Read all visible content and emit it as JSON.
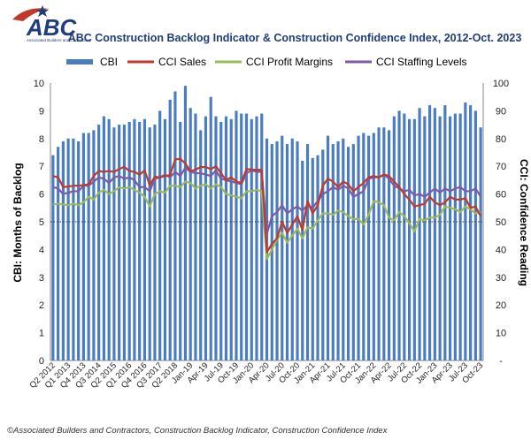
{
  "logo": {
    "letters": "ABC",
    "tagline": "Associated Builders and Contractors"
  },
  "footer": "©Associated Builders and Contractors, Construction Backlog Indicator, Construction Confidence Index",
  "colors": {
    "cbi": "#4a7cc2",
    "sales": "#c0392b",
    "profit": "#9bbb59",
    "staffing": "#7d5aa6",
    "title": "#1f3d7a"
  },
  "chart_data": {
    "type": "bar",
    "title": "ABC Construction Backlog Indicator & Construction Confidence Index, 2012-Oct. 2023",
    "ylabel": "CBI: Months of Backlog",
    "y2label": "CCI: Confidence Reading",
    "ylim": [
      0,
      10
    ],
    "y2lim": [
      0,
      100
    ],
    "yticks": [
      "0",
      "1",
      "2",
      "3",
      "4",
      "5",
      "6",
      "7",
      "8",
      "9",
      "10"
    ],
    "y2ticks": [
      "-",
      "10",
      "20",
      "30",
      "40",
      "50",
      "60",
      "70",
      "80",
      "90",
      "100"
    ],
    "reference_line_y2": 50,
    "grid": false,
    "legend_position": "top",
    "xticks": [
      "Q2 2012",
      "Q1 2013",
      "Q4 2013",
      "Q3 2014",
      "Q2 2015",
      "Q1 2016",
      "Q4 2016",
      "Q3 2017",
      "Q2 2018",
      "Jan-19",
      "Apr-19",
      "Jul-19",
      "Oct-19",
      "Jan-20",
      "Apr-20",
      "Jul-20",
      "Oct-20",
      "Jan-21",
      "Apr-21",
      "Jul-21",
      "Oct-21",
      "Jan-22",
      "Apr-22",
      "Jul-22",
      "Oct-22",
      "Jan-23",
      "Apr-23",
      "Jul-23",
      "Oct-23"
    ],
    "xtick_index": [
      0,
      3,
      6,
      9,
      12,
      15,
      18,
      21,
      24,
      27,
      30,
      33,
      36,
      39,
      42,
      45,
      48,
      51,
      54,
      57,
      60,
      63,
      66,
      69,
      72,
      75,
      78,
      81,
      84
    ],
    "series": [
      {
        "name": "CBI",
        "kind": "bar",
        "axis": "left",
        "values": [
          7.4,
          7.7,
          7.9,
          8.0,
          8.0,
          7.9,
          8.2,
          8.2,
          8.3,
          8.5,
          8.8,
          8.7,
          8.4,
          8.5,
          8.5,
          8.6,
          8.7,
          8.6,
          8.7,
          8.4,
          8.5,
          9.0,
          8.7,
          9.4,
          9.7,
          8.6,
          9.9,
          9.1,
          8.9,
          8.3,
          8.8,
          9.5,
          8.8,
          8.6,
          8.8,
          8.7,
          9.0,
          8.9,
          8.9,
          8.7,
          8.8,
          8.9,
          8.0,
          7.8,
          7.9,
          8.1,
          7.8,
          8.0,
          7.9,
          7.2,
          7.8,
          7.3,
          7.4,
          7.6,
          8.1,
          7.8,
          7.9,
          8.0,
          7.7,
          7.8,
          8.1,
          8.2,
          8.1,
          8.2,
          8.4,
          8.4,
          8.3,
          8.8,
          9.0,
          8.9,
          8.7,
          8.7,
          9.1,
          8.8,
          9.2,
          9.1,
          8.8,
          9.2,
          8.8,
          8.9,
          8.9,
          9.3,
          9.2,
          9.0,
          8.4
        ]
      },
      {
        "name": "CCI Sales",
        "kind": "line",
        "axis": "right",
        "values": [
          66.5,
          66.0,
          62.5,
          62.7,
          63.0,
          63.0,
          63.2,
          63.5,
          66.5,
          68.3,
          68.0,
          68.3,
          68.0,
          69.0,
          69.8,
          68.3,
          68.0,
          67.0,
          68.5,
          63.2,
          66.2,
          66.0,
          66.5,
          66.8,
          72.5,
          72.7,
          71.0,
          68.2,
          68.8,
          69.7,
          69.7,
          69.0,
          70.0,
          67.5,
          65.0,
          66.0,
          64.5,
          64.0,
          69.0,
          68.8,
          68.7,
          68.7,
          39.0,
          42.0,
          44.0,
          50.0,
          46.0,
          49.0,
          52.0,
          47.0,
          57.5,
          53.0,
          56.0,
          63.0,
          65.5,
          64.5,
          62.5,
          64.5,
          63.5,
          61.0,
          62.5,
          64.0,
          66.0,
          66.5,
          66.0,
          67.0,
          66.5,
          64.5,
          62.5,
          60.0,
          58.0,
          55.5,
          56.0,
          56.5,
          59.0,
          57.0,
          56.0,
          57.0,
          59.0,
          58.0,
          58.0,
          58.5,
          55.0,
          55.5,
          52.0
        ]
      },
      {
        "name": "CCI Profit Margins",
        "kind": "line",
        "axis": "right",
        "values": [
          56.2,
          56.5,
          56.2,
          56.0,
          56.5,
          56.0,
          57.0,
          59.0,
          58.0,
          60.5,
          61.5,
          60.0,
          61.0,
          62.5,
          62.0,
          62.5,
          61.5,
          60.5,
          59.0,
          55.5,
          60.0,
          61.0,
          60.5,
          63.0,
          63.0,
          62.5,
          64.5,
          64.0,
          62.0,
          63.0,
          63.5,
          62.0,
          63.5,
          62.5,
          60.0,
          59.5,
          59.0,
          58.5,
          61.0,
          61.0,
          61.5,
          61.0,
          36.5,
          40.0,
          43.5,
          46.0,
          42.5,
          45.0,
          47.5,
          44.0,
          48.0,
          47.5,
          50.5,
          53.0,
          53.0,
          52.5,
          54.0,
          53.5,
          52.0,
          51.0,
          51.0,
          49.0,
          52.5,
          57.5,
          57.0,
          56.0,
          51.5,
          50.5,
          53.5,
          52.0,
          49.5,
          46.5,
          51.0,
          50.5,
          51.5,
          51.5,
          52.5,
          55.5,
          55.0,
          54.5,
          53.5,
          55.5,
          54.5,
          53.0,
          53.5
        ]
      },
      {
        "name": "CCI Staffing Levels",
        "kind": "line",
        "axis": "right",
        "values": [
          62.5,
          62.0,
          60.0,
          60.5,
          61.0,
          61.0,
          63.0,
          63.0,
          64.5,
          66.0,
          65.5,
          64.0,
          66.0,
          66.5,
          65.5,
          66.0,
          65.0,
          62.5,
          62.5,
          61.0,
          65.5,
          66.0,
          67.0,
          66.0,
          68.0,
          66.5,
          69.5,
          68.0,
          67.5,
          67.5,
          67.0,
          66.5,
          68.5,
          65.5,
          65.0,
          64.5,
          64.0,
          63.5,
          67.5,
          68.5,
          68.0,
          68.0,
          45.5,
          52.0,
          53.5,
          56.0,
          53.0,
          54.5,
          55.5,
          54.0,
          56.0,
          55.0,
          57.5,
          60.0,
          61.0,
          62.5,
          61.5,
          63.0,
          62.0,
          59.0,
          60.0,
          61.0,
          65.5,
          66.0,
          66.0,
          67.0,
          65.5,
          63.0,
          62.0,
          61.0,
          61.5,
          59.5,
          60.0,
          59.0,
          60.5,
          62.0,
          60.5,
          62.0,
          61.0,
          62.0,
          62.5,
          61.0,
          61.0,
          62.0,
          59.0
        ]
      }
    ]
  }
}
